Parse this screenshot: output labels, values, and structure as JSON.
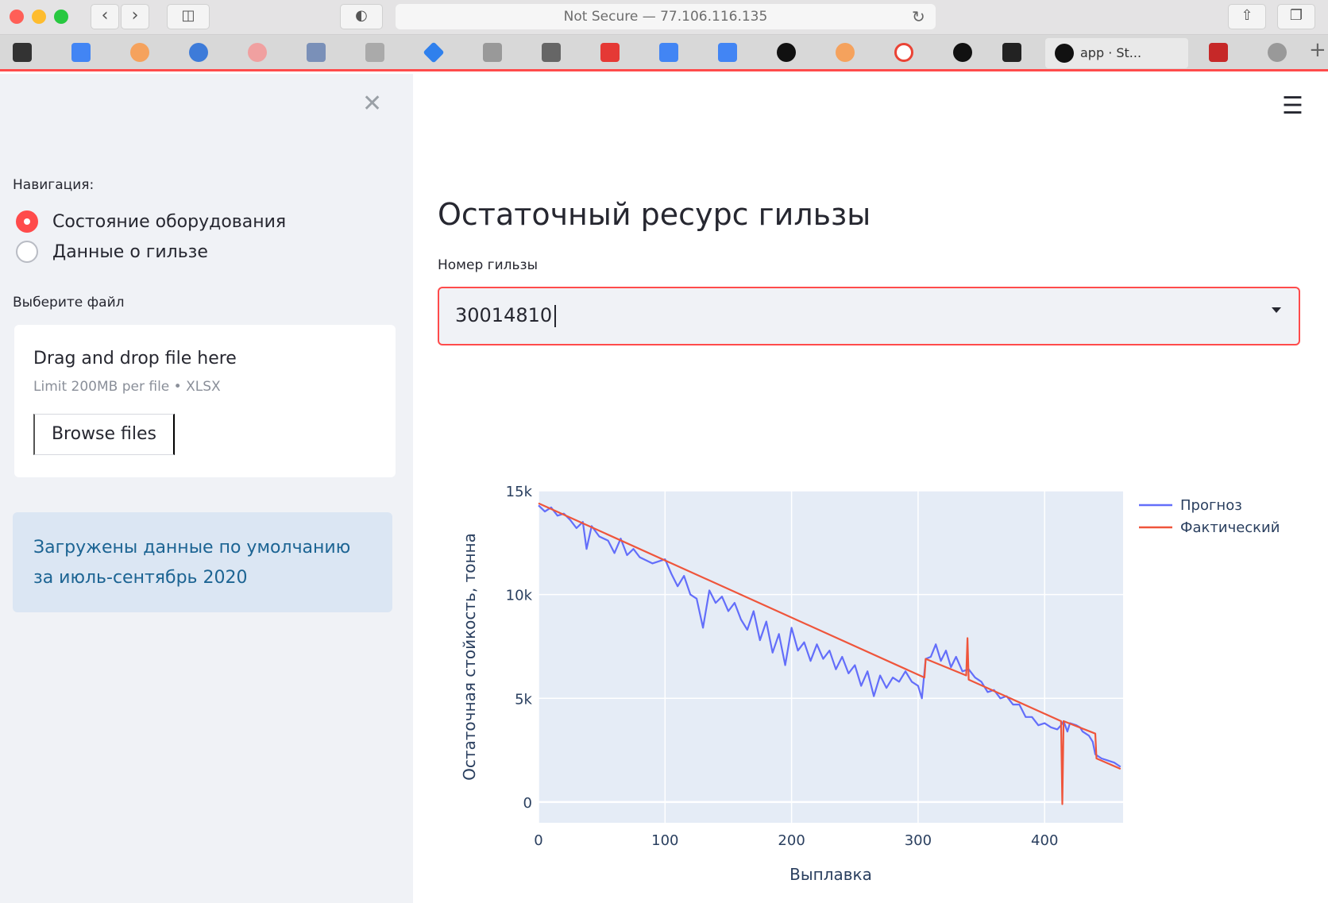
{
  "browser": {
    "url_text": "Not Secure — 77.106.116.135",
    "back_icon": "chevron-left-icon",
    "forward_icon": "chevron-right-icon",
    "active_tab_label": "app · St...",
    "colors": {
      "close": "#ff5f57",
      "minimize": "#febc2e",
      "maximize": "#28c840"
    }
  },
  "sidebar": {
    "close_icon": "close-icon",
    "nav_label": "Навигация:",
    "nav_options": [
      {
        "label": "Состояние оборудования",
        "checked": true
      },
      {
        "label": "Данные о гильзе",
        "checked": false
      }
    ],
    "file_label": "Выберите файл",
    "dropzone": {
      "title": "Drag and drop file here",
      "limit": "Limit 200MB per file • XLSX",
      "browse_label": "Browse files"
    },
    "info_message": "Загружены данные по умолчанию за июль-сентябрь 2020"
  },
  "main": {
    "menu_icon": "hamburger-menu-icon",
    "title": "Остаточный ресурс гильзы",
    "select_label": "Номер гильзы",
    "select_value": "30014810"
  },
  "chart_data": {
    "type": "line",
    "title": "",
    "xlabel": "Выплавка",
    "ylabel": "Остаточная стойкость, тонна",
    "xlim": [
      0,
      462
    ],
    "ylim": [
      -1000,
      15000
    ],
    "x_ticks": [
      0,
      100,
      200,
      300,
      400
    ],
    "y_ticks": [
      0,
      5000,
      10000,
      15000
    ],
    "y_tick_labels": [
      "0",
      "5k",
      "10k",
      "15k"
    ],
    "legend_position": "top-right",
    "grid": true,
    "series": [
      {
        "name": "Прогноз",
        "color": "#636efa",
        "points": [
          [
            0,
            14300
          ],
          [
            5,
            14000
          ],
          [
            10,
            14200
          ],
          [
            15,
            13800
          ],
          [
            20,
            13900
          ],
          [
            25,
            13600
          ],
          [
            30,
            13200
          ],
          [
            35,
            13500
          ],
          [
            38,
            12200
          ],
          [
            42,
            13300
          ],
          [
            48,
            12800
          ],
          [
            55,
            12600
          ],
          [
            60,
            12000
          ],
          [
            65,
            12700
          ],
          [
            70,
            11900
          ],
          [
            75,
            12200
          ],
          [
            80,
            11800
          ],
          [
            90,
            11500
          ],
          [
            100,
            11700
          ],
          [
            105,
            11000
          ],
          [
            110,
            10400
          ],
          [
            115,
            10900
          ],
          [
            120,
            10000
          ],
          [
            125,
            9800
          ],
          [
            130,
            8400
          ],
          [
            135,
            10200
          ],
          [
            140,
            9600
          ],
          [
            145,
            9900
          ],
          [
            150,
            9200
          ],
          [
            155,
            9600
          ],
          [
            160,
            8800
          ],
          [
            165,
            8300
          ],
          [
            170,
            9200
          ],
          [
            175,
            7800
          ],
          [
            180,
            8700
          ],
          [
            185,
            7200
          ],
          [
            190,
            8100
          ],
          [
            195,
            6600
          ],
          [
            200,
            8400
          ],
          [
            205,
            7300
          ],
          [
            210,
            7700
          ],
          [
            215,
            6800
          ],
          [
            220,
            7600
          ],
          [
            225,
            6900
          ],
          [
            230,
            7300
          ],
          [
            235,
            6400
          ],
          [
            240,
            7000
          ],
          [
            245,
            6200
          ],
          [
            250,
            6600
          ],
          [
            255,
            5600
          ],
          [
            260,
            6300
          ],
          [
            265,
            5100
          ],
          [
            270,
            6100
          ],
          [
            275,
            5500
          ],
          [
            280,
            6000
          ],
          [
            285,
            5800
          ],
          [
            290,
            6300
          ],
          [
            295,
            5800
          ],
          [
            300,
            5600
          ],
          [
            303,
            5000
          ],
          [
            306,
            6900
          ],
          [
            310,
            7000
          ],
          [
            314,
            7600
          ],
          [
            318,
            6800
          ],
          [
            322,
            7300
          ],
          [
            326,
            6500
          ],
          [
            330,
            7000
          ],
          [
            335,
            6300
          ],
          [
            340,
            6400
          ],
          [
            345,
            6000
          ],
          [
            350,
            5800
          ],
          [
            355,
            5300
          ],
          [
            360,
            5400
          ],
          [
            365,
            5000
          ],
          [
            370,
            5100
          ],
          [
            375,
            4700
          ],
          [
            380,
            4700
          ],
          [
            385,
            4100
          ],
          [
            390,
            4100
          ],
          [
            395,
            3700
          ],
          [
            400,
            3800
          ],
          [
            405,
            3600
          ],
          [
            410,
            3500
          ],
          [
            413,
            3700
          ],
          [
            415,
            3900
          ],
          [
            418,
            3400
          ],
          [
            420,
            3800
          ],
          [
            425,
            3700
          ],
          [
            428,
            3600
          ],
          [
            430,
            3400
          ],
          [
            435,
            3200
          ],
          [
            438,
            2900
          ],
          [
            440,
            2300
          ],
          [
            445,
            2100
          ],
          [
            450,
            2000
          ],
          [
            455,
            1900
          ],
          [
            460,
            1700
          ]
        ]
      },
      {
        "name": "Фактический",
        "color": "#ef553b",
        "points": [
          [
            0,
            14400
          ],
          [
            305,
            6000
          ],
          [
            306,
            6900
          ],
          [
            338,
            6100
          ],
          [
            339,
            7900
          ],
          [
            340,
            5900
          ],
          [
            413,
            3900
          ],
          [
            414,
            -100
          ],
          [
            415,
            3900
          ],
          [
            440,
            3300
          ],
          [
            441,
            2100
          ],
          [
            460,
            1600
          ]
        ]
      }
    ]
  }
}
